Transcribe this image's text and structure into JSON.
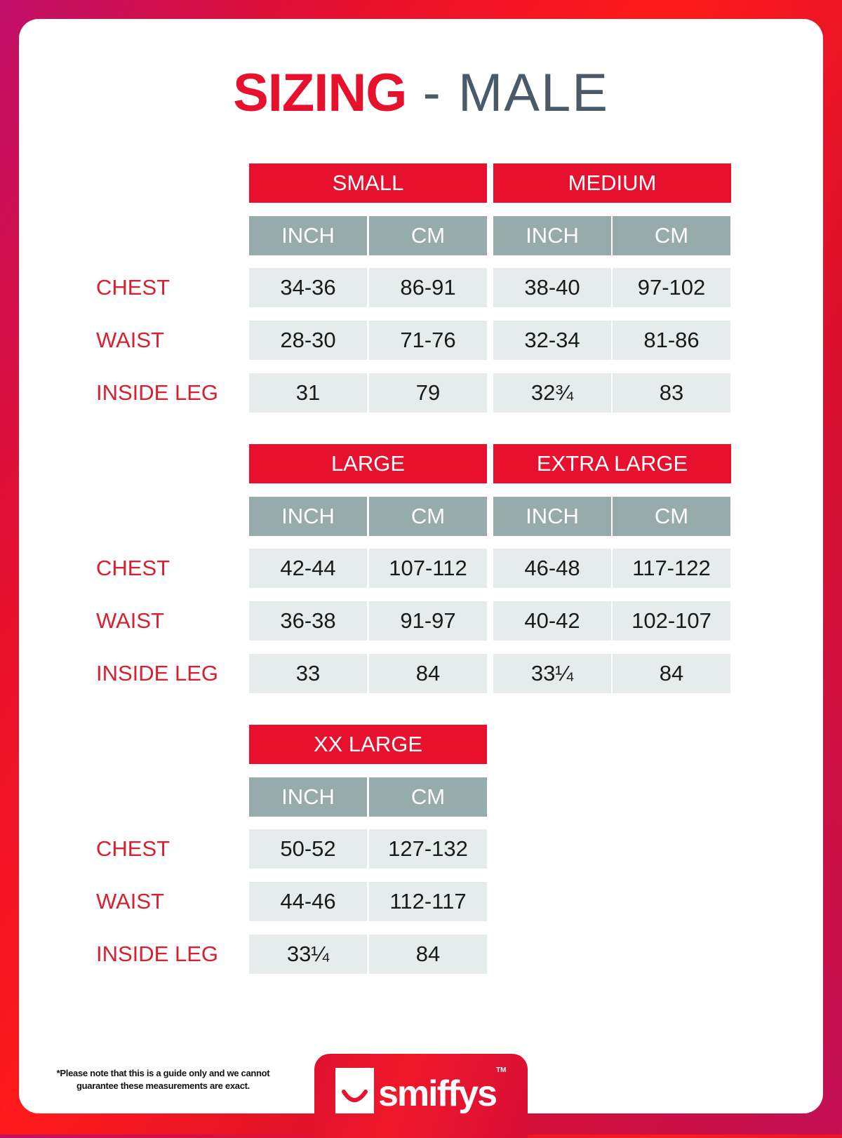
{
  "title": {
    "bold": "SIZING",
    "rest": " - MALE"
  },
  "unit_labels": [
    "INCH",
    "CM"
  ],
  "row_labels": [
    "CHEST",
    "WAIST",
    "INSIDE LEG"
  ],
  "blocks": [
    {
      "sizes": [
        {
          "name": "SMALL",
          "rows": [
            [
              "34-36",
              "86-91"
            ],
            [
              "28-30",
              "71-76"
            ],
            [
              "31",
              "79"
            ]
          ]
        },
        {
          "name": "MEDIUM",
          "rows": [
            [
              "38-40",
              "97-102"
            ],
            [
              "32-34",
              "81-86"
            ],
            [
              "32¾",
              "83"
            ]
          ]
        }
      ]
    },
    {
      "sizes": [
        {
          "name": "LARGE",
          "rows": [
            [
              "42-44",
              "107-112"
            ],
            [
              "36-38",
              "91-97"
            ],
            [
              "33",
              "84"
            ]
          ]
        },
        {
          "name": "EXTRA LARGE",
          "rows": [
            [
              "46-48",
              "117-122"
            ],
            [
              "40-42",
              "102-107"
            ],
            [
              "33¼",
              "84"
            ]
          ]
        }
      ]
    },
    {
      "sizes": [
        {
          "name": "XX LARGE",
          "rows": [
            [
              "50-52",
              "127-132"
            ],
            [
              "44-46",
              "112-117"
            ],
            [
              "33¼",
              "84"
            ]
          ]
        }
      ]
    }
  ],
  "footnote": "*Please note that this is a guide only and we cannot guarantee these measurements are exact.",
  "logo": {
    "text": "smiffys",
    "tm": "TM",
    "icon": "smile-icon"
  },
  "colors": {
    "accent": "#e8112d",
    "header_gray": "#97aaac",
    "cell": "#e6eceb",
    "title_gray": "#4a5a68"
  }
}
